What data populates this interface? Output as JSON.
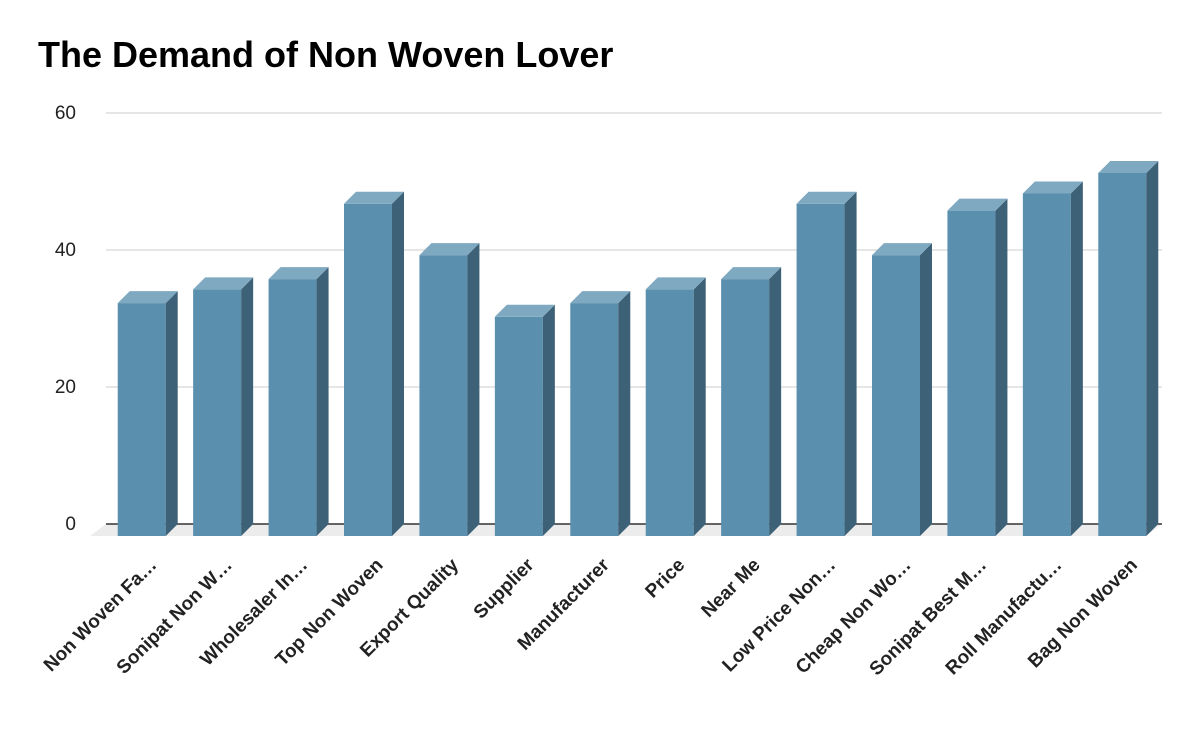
{
  "chart_data": {
    "type": "bar",
    "title": "The Demand of Non Woven Lover",
    "xlabel": "",
    "ylabel": "",
    "ylim": [
      0,
      60
    ],
    "yticks": [
      0,
      20,
      40,
      60
    ],
    "grid": true,
    "style": "3d",
    "categories": [
      "Non Woven Fa…",
      "Sonipat Non W…",
      "Wholesaler In…",
      "Top Non Woven",
      "Export Quality",
      "Supplier",
      "Manufacturer",
      "Price",
      "Near Me",
      "Low Price Non…",
      "Cheap Non Wo…",
      "Sonipat Best M…",
      "Roll Manufactu…",
      "Bag Non Woven"
    ],
    "series": [
      {
        "values": [
          34,
          36,
          37.5,
          48.5,
          41,
          32,
          34,
          36,
          37.5,
          48.5,
          41,
          47.5,
          50,
          53
        ]
      }
    ]
  },
  "colors": {
    "bar_front": "#5a8fae",
    "bar_top": "#7fa9c1",
    "bar_side": "#3d6177",
    "grid": "#cccccc",
    "baseline": "#333333",
    "floor": "#ececec"
  }
}
